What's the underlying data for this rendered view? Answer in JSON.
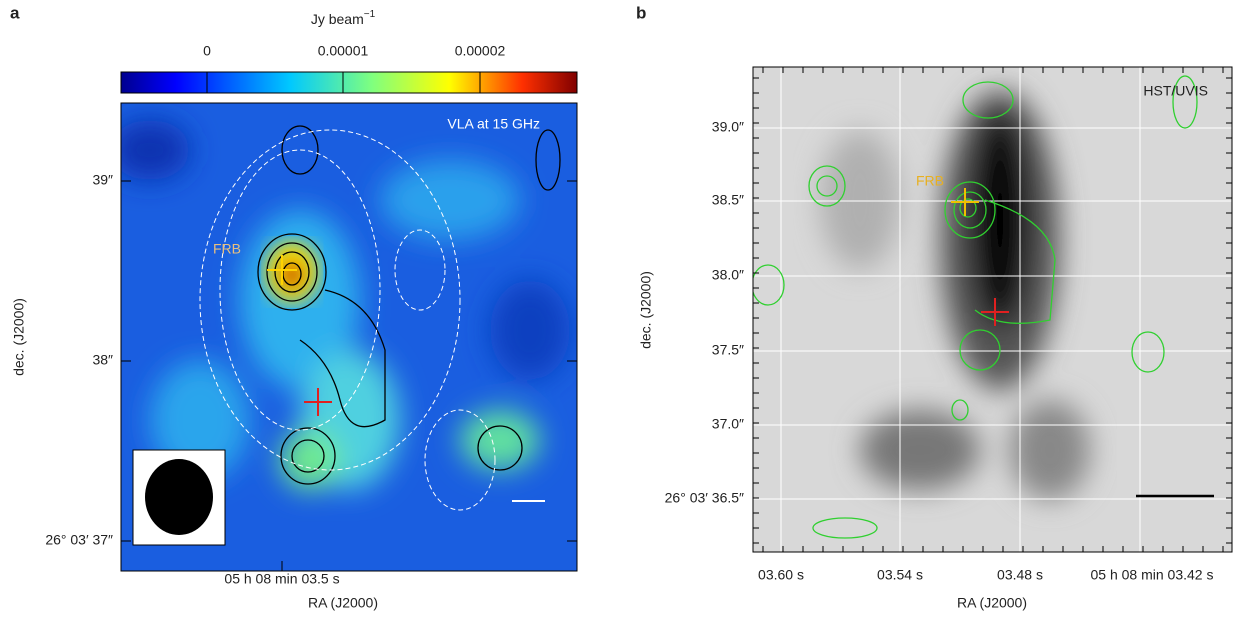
{
  "panel_a": {
    "label": "a",
    "colorbar": {
      "unit": "Jy beam",
      "unit_exponent": "−1",
      "ticks": [
        "0",
        "0.00001",
        "0.00002"
      ]
    },
    "annotation": "VLA at 15 GHz",
    "source_label": "FRB",
    "yticks": [
      "39″",
      "38″",
      "26° 03′ 37″"
    ],
    "xticks": [
      "05 h 08 min 03.5 s"
    ],
    "xlabel": "RA (J2000)",
    "ylabel": "dec. (J2000)"
  },
  "panel_b": {
    "label": "b",
    "annotation": "HST/UVIS",
    "source_label": "FRB",
    "yticks": [
      "39.0″",
      "38.5″",
      "38.0″",
      "37.5″",
      "37.0″",
      "26° 03′ 36.5″"
    ],
    "xticks": [
      "03.60 s",
      "03.54 s",
      "03.48 s",
      "05 h 08 min 03.42 s"
    ],
    "xlabel": "RA (J2000)",
    "ylabel": "dec. (J2000)"
  }
}
